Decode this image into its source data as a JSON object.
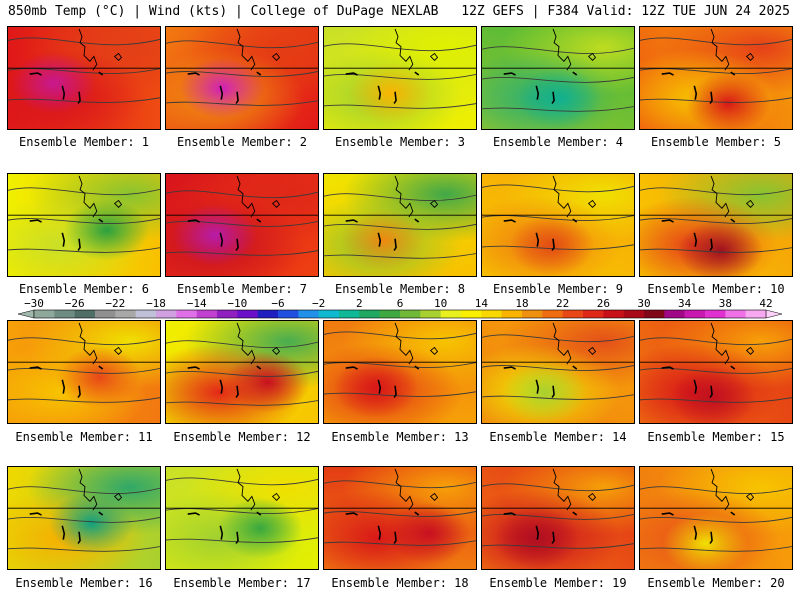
{
  "header": {
    "left_title": "850mb Temp (°C) | Wind (kts) | College of DuPage NEXLAB",
    "right_title": "12Z GEFS | F384 Valid: 12Z TUE JUN 24 2025"
  },
  "members": [
    {
      "label": "Ensemble Member: 1",
      "palette": [
        "#e01818",
        "#ee4b12",
        "#d8141c",
        "#e24018"
      ],
      "hot": "#c81890"
    },
    {
      "label": "Ensemble Member: 2",
      "palette": [
        "#f27a10",
        "#e21818",
        "#f09010",
        "#e43c14"
      ],
      "hot": "#d020b8"
    },
    {
      "label": "Ensemble Member: 3",
      "palette": [
        "#c8e028",
        "#f0f000",
        "#a0d030",
        "#e0f000"
      ],
      "hot": "#fab400"
    },
    {
      "label": "Ensemble Member: 4",
      "palette": [
        "#48b838",
        "#8cc430",
        "#30b070",
        "#bedc20"
      ],
      "hot": "#10b090"
    },
    {
      "label": "Ensemble Member: 5",
      "palette": [
        "#f6a008",
        "#ef5a10",
        "#f7c000",
        "#e64018"
      ],
      "hot": "#d81818"
    },
    {
      "label": "Ensemble Member: 6",
      "palette": [
        "#f0f000",
        "#f8c000",
        "#c8e028",
        "#88c430"
      ],
      "hot": "#2aa040"
    },
    {
      "label": "Ensemble Member: 7",
      "palette": [
        "#d8141c",
        "#ee4012",
        "#c81020",
        "#e02818"
      ],
      "hot": "#b81ca8"
    },
    {
      "label": "Ensemble Member: 8",
      "palette": [
        "#f0e400",
        "#f8c000",
        "#8cc430",
        "#40a848"
      ],
      "hot": "#f08810"
    },
    {
      "label": "Ensemble Member: 9",
      "palette": [
        "#f7a408",
        "#f7c800",
        "#f08010",
        "#f0e000"
      ],
      "hot": "#e24a14"
    },
    {
      "label": "Ensemble Member: 10",
      "palette": [
        "#f6a008",
        "#f8c800",
        "#e54018",
        "#88c430"
      ],
      "hot": "#a01020"
    },
    {
      "label": "Ensemble Member: 11",
      "palette": [
        "#f7a008",
        "#f27810",
        "#f7c400",
        "#f0e000"
      ],
      "hot": "#e84818"
    },
    {
      "label": "Ensemble Member: 12",
      "palette": [
        "#f0f000",
        "#f7c400",
        "#e22818",
        "#48ae50"
      ],
      "hot": "#c81020"
    },
    {
      "label": "Ensemble Member: 13",
      "palette": [
        "#f07a10",
        "#f6a008",
        "#e43c14",
        "#f7c400"
      ],
      "hot": "#d81818"
    },
    {
      "label": "Ensemble Member: 14",
      "palette": [
        "#f7a408",
        "#f08010",
        "#f0e400",
        "#e45018"
      ],
      "hot": "#a8d030"
    },
    {
      "label": "Ensemble Member: 15",
      "palette": [
        "#e43c14",
        "#f07010",
        "#d81818",
        "#f7a008"
      ],
      "hot": "#c01020"
    },
    {
      "label": "Ensemble Member: 16",
      "palette": [
        "#f0d800",
        "#a8d030",
        "#f7b000",
        "#30a868"
      ],
      "hot": "#10a080"
    },
    {
      "label": "Ensemble Member: 17",
      "palette": [
        "#c8e028",
        "#e4f000",
        "#a0d030",
        "#f0e000"
      ],
      "hot": "#38a840"
    },
    {
      "label": "Ensemble Member: 18",
      "palette": [
        "#e43c14",
        "#f07a10",
        "#d81818",
        "#f7a008"
      ],
      "hot": "#c81020"
    },
    {
      "label": "Ensemble Member: 19",
      "palette": [
        "#e03018",
        "#f07010",
        "#c81020",
        "#f6a008"
      ],
      "hot": "#b01020"
    },
    {
      "label": "Ensemble Member: 20",
      "palette": [
        "#f7a008",
        "#f07a10",
        "#e85018",
        "#f7c400"
      ],
      "hot": "#f0e000"
    }
  ],
  "colorbar": {
    "tick_labels": [
      "−30",
      "−26",
      "−22",
      "−18",
      "−14",
      "−10",
      "−6",
      "−2",
      "2",
      "6",
      "10",
      "14",
      "18",
      "22",
      "26",
      "30",
      "34",
      "38",
      "42"
    ],
    "colors": [
      "#8fa89c",
      "#6f8c82",
      "#4e6e66",
      "#909090",
      "#a8a8a8",
      "#c0c0d8",
      "#d0a0e0",
      "#e070e8",
      "#c040d0",
      "#9020c0",
      "#6a10c8",
      "#2020c0",
      "#2050e0",
      "#2090e8",
      "#10b8d0",
      "#10b898",
      "#20a860",
      "#40a840",
      "#70b838",
      "#a8d030",
      "#e8f020",
      "#f8f000",
      "#f8d800",
      "#f8b400",
      "#f09010",
      "#f06c10",
      "#e84818",
      "#e02818",
      "#c81018",
      "#a80818",
      "#800818",
      "#a00888",
      "#c818b0",
      "#e030d0",
      "#f070e8",
      "#f8a8f0"
    ]
  }
}
